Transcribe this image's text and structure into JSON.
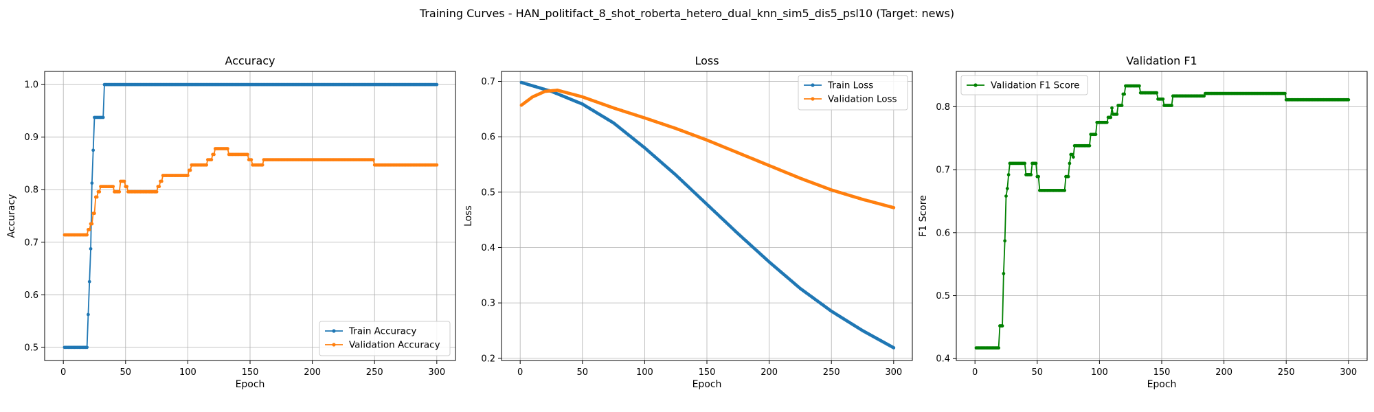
{
  "figure": {
    "suptitle": "Training Curves - HAN_politifact_8_shot_roberta_hetero_dual_knn_sim5_dis5_psl10 (Target: news)"
  },
  "colors": {
    "blue": "#1f77b4",
    "orange": "#ff7f0e",
    "green": "#008000",
    "grid": "#b0b0b0"
  },
  "chart_data": [
    {
      "type": "line",
      "title": "Accuracy",
      "xlabel": "Epoch",
      "ylabel": "Accuracy",
      "xlim": [
        -15,
        315
      ],
      "ylim": [
        0.475,
        1.025
      ],
      "xticks": [
        0,
        50,
        100,
        150,
        200,
        250,
        300
      ],
      "yticks": [
        0.5,
        0.6,
        0.7,
        0.8,
        0.9,
        1.0
      ],
      "ytick_labels": [
        "0.5",
        "0.6",
        "0.7",
        "0.8",
        "0.9",
        "1.0"
      ],
      "grid": true,
      "legend_position": "lower-right",
      "series": [
        {
          "name": "Train Accuracy",
          "color": "#1f77b4",
          "points": [
            [
              1,
              0.5
            ],
            [
              19,
              0.5
            ],
            [
              20,
              0.5625
            ],
            [
              21,
              0.625
            ],
            [
              22,
              0.6875
            ],
            [
              23,
              0.8125
            ],
            [
              24,
              0.875
            ],
            [
              25,
              0.9375
            ],
            [
              32,
              0.9375
            ],
            [
              33,
              1.0
            ],
            [
              300,
              1.0
            ]
          ]
        },
        {
          "name": "Validation Accuracy",
          "color": "#ff7f0e",
          "points": [
            [
              1,
              0.714
            ],
            [
              19,
              0.714
            ],
            [
              20,
              0.724
            ],
            [
              22,
              0.735
            ],
            [
              24,
              0.755
            ],
            [
              26,
              0.786
            ],
            [
              28,
              0.796
            ],
            [
              30,
              0.806
            ],
            [
              40,
              0.806
            ],
            [
              41,
              0.796
            ],
            [
              45,
              0.796
            ],
            [
              46,
              0.816
            ],
            [
              49,
              0.816
            ],
            [
              50,
              0.806
            ],
            [
              52,
              0.796
            ],
            [
              75,
              0.796
            ],
            [
              76,
              0.806
            ],
            [
              78,
              0.816
            ],
            [
              80,
              0.827
            ],
            [
              100,
              0.827
            ],
            [
              101,
              0.837
            ],
            [
              103,
              0.847
            ],
            [
              115,
              0.847
            ],
            [
              116,
              0.857
            ],
            [
              120,
              0.867
            ],
            [
              122,
              0.878
            ],
            [
              132,
              0.878
            ],
            [
              133,
              0.867
            ],
            [
              148,
              0.867
            ],
            [
              149,
              0.857
            ],
            [
              152,
              0.847
            ],
            [
              160,
              0.847
            ],
            [
              161,
              0.857
            ],
            [
              249,
              0.857
            ],
            [
              250,
              0.847
            ],
            [
              300,
              0.847
            ]
          ]
        }
      ]
    },
    {
      "type": "line",
      "title": "Loss",
      "xlabel": "Epoch",
      "ylabel": "Loss",
      "xlim": [
        -15,
        315
      ],
      "ylim": [
        0.196,
        0.718
      ],
      "xticks": [
        0,
        50,
        100,
        150,
        200,
        250,
        300
      ],
      "yticks": [
        0.2,
        0.3,
        0.4,
        0.5,
        0.6,
        0.7
      ],
      "ytick_labels": [
        "0.2",
        "0.3",
        "0.4",
        "0.5",
        "0.6",
        "0.7"
      ],
      "grid": true,
      "legend_position": "upper-right",
      "series": [
        {
          "name": "Train Loss",
          "color": "#1f77b4",
          "points": [
            [
              1,
              0.698
            ],
            [
              25,
              0.682
            ],
            [
              50,
              0.659
            ],
            [
              75,
              0.625
            ],
            [
              100,
              0.58
            ],
            [
              125,
              0.531
            ],
            [
              150,
              0.478
            ],
            [
              175,
              0.425
            ],
            [
              200,
              0.374
            ],
            [
              225,
              0.326
            ],
            [
              250,
              0.285
            ],
            [
              275,
              0.25
            ],
            [
              300,
              0.219
            ]
          ]
        },
        {
          "name": "Validation Loss",
          "color": "#ff7f0e",
          "points": [
            [
              1,
              0.657
            ],
            [
              10,
              0.672
            ],
            [
              20,
              0.682
            ],
            [
              30,
              0.684
            ],
            [
              50,
              0.672
            ],
            [
              75,
              0.652
            ],
            [
              100,
              0.634
            ],
            [
              125,
              0.615
            ],
            [
              150,
              0.594
            ],
            [
              175,
              0.571
            ],
            [
              200,
              0.548
            ],
            [
              225,
              0.525
            ],
            [
              250,
              0.504
            ],
            [
              275,
              0.487
            ],
            [
              300,
              0.472
            ]
          ]
        }
      ]
    },
    {
      "type": "line",
      "title": "Validation F1",
      "xlabel": "Epoch",
      "ylabel": "F1 Score",
      "xlim": [
        -15,
        315
      ],
      "ylim": [
        0.397,
        0.856
      ],
      "xticks": [
        0,
        50,
        100,
        150,
        200,
        250,
        300
      ],
      "yticks": [
        0.4,
        0.5,
        0.6,
        0.7,
        0.8
      ],
      "ytick_labels": [
        "0.4",
        "0.5",
        "0.6",
        "0.7",
        "0.8"
      ],
      "grid": true,
      "legend_position": "upper-left",
      "series": [
        {
          "name": "Validation F1 Score",
          "color": "#008000",
          "points": [
            [
              1,
              0.417
            ],
            [
              19,
              0.417
            ],
            [
              20,
              0.452
            ],
            [
              22,
              0.452
            ],
            [
              23,
              0.535
            ],
            [
              24,
              0.587
            ],
            [
              25,
              0.658
            ],
            [
              26,
              0.67
            ],
            [
              27,
              0.692
            ],
            [
              28,
              0.71
            ],
            [
              40,
              0.71
            ],
            [
              41,
              0.692
            ],
            [
              45,
              0.692
            ],
            [
              46,
              0.71
            ],
            [
              49,
              0.71
            ],
            [
              50,
              0.689
            ],
            [
              52,
              0.667
            ],
            [
              72,
              0.667
            ],
            [
              73,
              0.689
            ],
            [
              76,
              0.71
            ],
            [
              77,
              0.724
            ],
            [
              79,
              0.72
            ],
            [
              80,
              0.738
            ],
            [
              92,
              0.738
            ],
            [
              93,
              0.756
            ],
            [
              97,
              0.756
            ],
            [
              98,
              0.775
            ],
            [
              106,
              0.775
            ],
            [
              107,
              0.783
            ],
            [
              110,
              0.798
            ],
            [
              111,
              0.788
            ],
            [
              114,
              0.788
            ],
            [
              115,
              0.802
            ],
            [
              118,
              0.802
            ],
            [
              119,
              0.82
            ],
            [
              121,
              0.833
            ],
            [
              132,
              0.833
            ],
            [
              133,
              0.822
            ],
            [
              146,
              0.822
            ],
            [
              147,
              0.812
            ],
            [
              151,
              0.812
            ],
            [
              152,
              0.802
            ],
            [
              158,
              0.802
            ],
            [
              159,
              0.817
            ],
            [
              184,
              0.817
            ],
            [
              185,
              0.821
            ],
            [
              249,
              0.821
            ],
            [
              250,
              0.811
            ],
            [
              300,
              0.811
            ]
          ]
        }
      ]
    }
  ]
}
